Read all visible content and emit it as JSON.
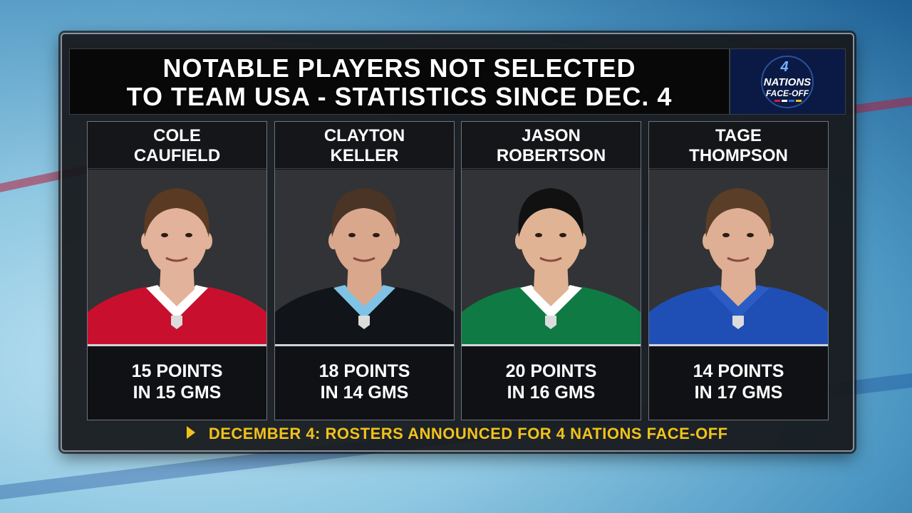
{
  "header": {
    "title_line1": "NOTABLE PLAYERS NOT SELECTED",
    "title_line2": "TO TEAM USA - STATISTICS SINCE DEC. 4"
  },
  "logo": {
    "text_line1": "NATIONS",
    "text_line2": "FACE-OFF",
    "numeral": "4"
  },
  "players": [
    {
      "first": "COLE",
      "last": "CAUFIELD",
      "points": "15 POINTS",
      "games": "IN 15 GMS",
      "jersey_color": "#c8102e",
      "collar_color": "#ffffff",
      "hair_color": "#5a3a22",
      "skin_color": "#e2b29a"
    },
    {
      "first": "CLAYTON",
      "last": "KELLER",
      "points": "18 POINTS",
      "games": "IN 14 GMS",
      "jersey_color": "#111418",
      "collar_color": "#7ec3e6",
      "hair_color": "#4a3426",
      "skin_color": "#d9a88c"
    },
    {
      "first": "JASON",
      "last": "ROBERTSON",
      "points": "20 POINTS",
      "games": "IN 16 GMS",
      "jersey_color": "#0f7a43",
      "collar_color": "#ffffff",
      "hair_color": "#111111",
      "skin_color": "#e0b394"
    },
    {
      "first": "TAGE",
      "last": "THOMPSON",
      "points": "14 POINTS",
      "games": "IN 17 GMS",
      "jersey_color": "#1f4fb5",
      "collar_color": "#2a5cc4",
      "hair_color": "#5b3e28",
      "skin_color": "#deaf94"
    }
  ],
  "ticker": {
    "text": "DECEMBER 4: ROSTERS ANNOUNCED FOR 4 NATIONS FACE-OFF",
    "color": "#f2c21a"
  }
}
